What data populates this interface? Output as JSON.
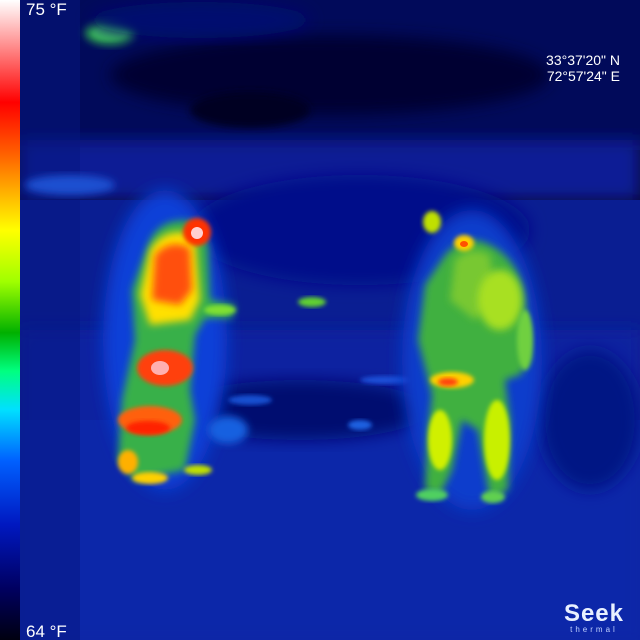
{
  "scale": {
    "max_label": "75 °F",
    "min_label": "64 °F"
  },
  "gps": {
    "latitude": "33°37'20\" N",
    "longitude": "72°57'24\" E"
  },
  "brand": {
    "name": "Seek",
    "sub": "thermal"
  },
  "palette": {
    "background": "#000536",
    "hot": "#ff0000",
    "warm": "#ffff00",
    "mid": "#00b000",
    "cool": "#0040ff"
  }
}
